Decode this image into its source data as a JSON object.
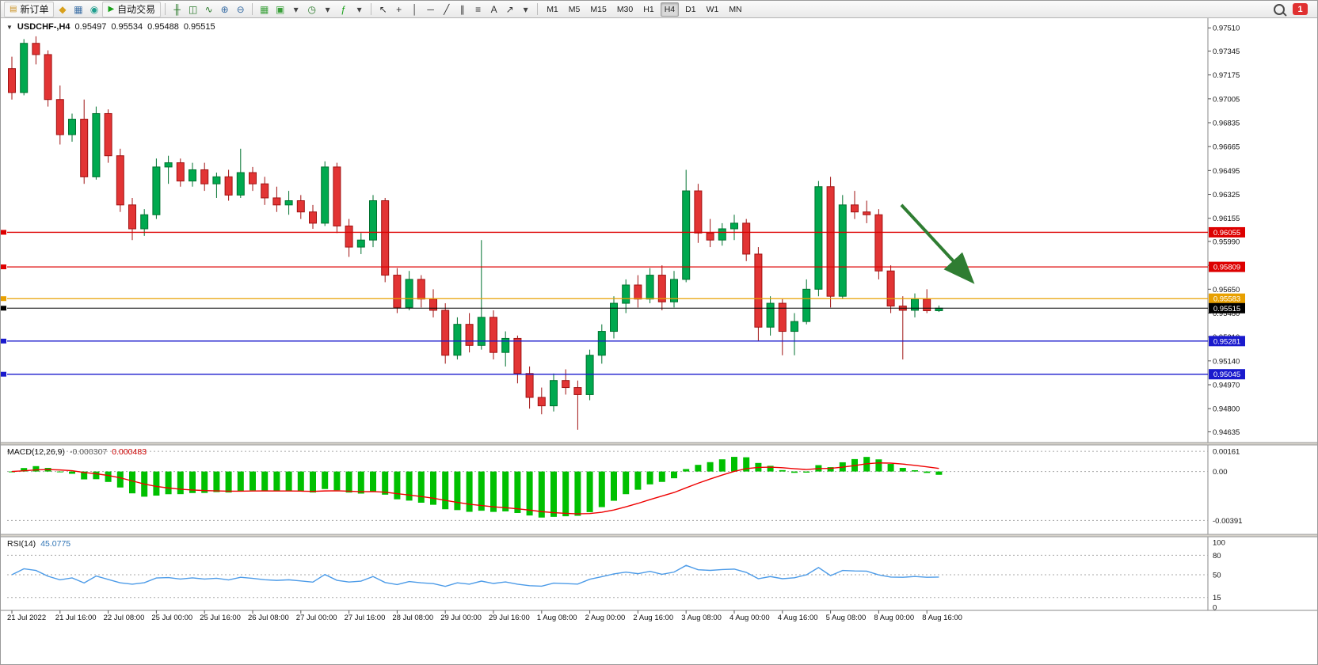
{
  "toolbar": {
    "left_items": [
      {
        "name": "new-order-button",
        "kind": "button",
        "label": "新订单",
        "glyph": "▤",
        "glyph_color": "#c98f1e"
      },
      {
        "name": "market-watch-icon",
        "kind": "icon",
        "glyph": "◆",
        "color": "#d8a01d"
      },
      {
        "name": "data-window-icon",
        "kind": "icon",
        "glyph": "▦",
        "color": "#3a6ea5"
      },
      {
        "name": "navigator-icon",
        "kind": "icon",
        "glyph": "◉",
        "color": "#1f9e8e"
      },
      {
        "name": "autotrading-button",
        "kind": "button",
        "label": "自动交易",
        "glyph": "▶",
        "glyph_color": "#18a018"
      },
      {
        "kind": "sep"
      },
      {
        "name": "bar-chart-icon",
        "kind": "icon",
        "glyph": "╫",
        "color": "#2a7a2a"
      },
      {
        "name": "candlestick-chart-icon",
        "kind": "icon",
        "glyph": "◫",
        "color": "#2a7a2a"
      },
      {
        "name": "line-chart-icon",
        "kind": "icon",
        "glyph": "∿",
        "color": "#2a7a2a"
      },
      {
        "name": "zoom-in-icon",
        "kind": "icon",
        "glyph": "⊕",
        "color": "#3a6ea5"
      },
      {
        "name": "zoom-out-icon",
        "kind": "icon",
        "glyph": "⊖",
        "color": "#3a6ea5"
      },
      {
        "kind": "sep"
      },
      {
        "name": "tile-windows-icon",
        "kind": "icon",
        "glyph": "▦",
        "color": "#3aa03a"
      },
      {
        "name": "new-chart-icon",
        "kind": "icon",
        "glyph": "▣",
        "color": "#3aa03a"
      },
      {
        "name": "chart-list-dropdown-icon",
        "kind": "icon",
        "glyph": "▾",
        "color": "#444444"
      },
      {
        "name": "period-clock-icon",
        "kind": "icon",
        "glyph": "◷",
        "color": "#2a7a2a"
      },
      {
        "name": "period-dropdown-icon",
        "kind": "icon",
        "glyph": "▾",
        "color": "#444444"
      },
      {
        "name": "indicators-icon",
        "kind": "icon",
        "glyph": "ƒ",
        "color": "#18a018"
      },
      {
        "name": "indicators-dropdown-icon",
        "kind": "icon",
        "glyph": "▾",
        "color": "#444444"
      },
      {
        "kind": "sep"
      },
      {
        "name": "cursor-icon",
        "kind": "icon",
        "glyph": "↖",
        "color": "#333333"
      },
      {
        "name": "crosshair-icon",
        "kind": "icon",
        "glyph": "+",
        "color": "#333333"
      },
      {
        "name": "vertical-line-icon",
        "kind": "icon",
        "glyph": "│",
        "color": "#333333"
      },
      {
        "name": "horizontal-line-icon",
        "kind": "icon",
        "glyph": "─",
        "color": "#333333"
      },
      {
        "name": "trendline-icon",
        "kind": "icon",
        "glyph": "╱",
        "color": "#333333"
      },
      {
        "name": "channel-icon",
        "kind": "icon",
        "glyph": "∥",
        "color": "#333333"
      },
      {
        "name": "fibonacci-icon",
        "kind": "icon",
        "glyph": "≡",
        "color": "#333333"
      },
      {
        "name": "text-icon",
        "kind": "icon",
        "glyph": "A",
        "color": "#333333"
      },
      {
        "name": "arrow-tools-icon",
        "kind": "icon",
        "glyph": "↗",
        "color": "#333333"
      },
      {
        "name": "shapes-dropdown-icon",
        "kind": "icon",
        "glyph": "▾",
        "color": "#444444"
      },
      {
        "kind": "sep"
      }
    ],
    "timeframes": [
      "M1",
      "M5",
      "M15",
      "M30",
      "H1",
      "H4",
      "D1",
      "W1",
      "MN"
    ],
    "active_timeframe": "H4",
    "notification_count": "1"
  },
  "chart": {
    "title": {
      "collapse_icon": "▼",
      "symbol": "USDCHF-,H4",
      "open": "0.95497",
      "high": "0.95534",
      "low": "0.95488",
      "close": "0.95515"
    },
    "price_axis_labels": [
      "0.97510",
      "0.97345",
      "0.97175",
      "0.97005",
      "0.96835",
      "0.96665",
      "0.96495",
      "0.96325",
      "0.96155",
      "0.95990",
      "0.95820",
      "0.95650",
      "0.95480",
      "0.95310",
      "0.95140",
      "0.94970",
      "0.94800",
      "0.94635"
    ],
    "levels": [
      {
        "name": "resistance-line-1",
        "price": 0.96055,
        "label": "0.96055",
        "color": "#dd0000"
      },
      {
        "name": "resistance-line-2",
        "price": 0.95809,
        "label": "0.95809",
        "color": "#dd0000"
      },
      {
        "name": "pivot-line",
        "price": 0.95583,
        "label": "0.95583",
        "color": "#e8a000"
      },
      {
        "name": "support-line-1",
        "price": 0.95281,
        "label": "0.95281",
        "color": "#1a1acd"
      },
      {
        "name": "support-line-2",
        "price": 0.95045,
        "label": "0.95045",
        "color": "#1a1acd"
      }
    ],
    "current_price": {
      "price": 0.95515,
      "label": "0.95515",
      "color": "#000000"
    },
    "annotation_arrow": {
      "color": "#2f7d32",
      "from_price": 0.9625,
      "to_price": 0.9572,
      "note": "down-trend arrow drawn in right margin"
    },
    "time_axis": {
      "labels": [
        "21 Jul 2022",
        "21 Jul 16:00",
        "22 Jul 08:00",
        "25 Jul 00:00",
        "25 Jul 16:00",
        "26 Jul 08:00",
        "27 Jul 00:00",
        "27 Jul 16:00",
        "28 Jul 08:00",
        "29 Jul 00:00",
        "29 Jul 16:00",
        "1 Aug 08:00",
        "2 Aug 00:00",
        "2 Aug 16:00",
        "3 Aug 08:00",
        "4 Aug 00:00",
        "4 Aug 16:00",
        "5 Aug 08:00",
        "8 Aug 00:00",
        "8 Aug 16:00"
      ],
      "indices": [
        0,
        4,
        8,
        12,
        16,
        20,
        24,
        28,
        32,
        36,
        40,
        44,
        48,
        52,
        56,
        60,
        64,
        68,
        72,
        76
      ]
    }
  },
  "macd": {
    "name": "MACD(12,26,9)",
    "main_value": "-0.000307",
    "signal_value": "0.000483",
    "axis_labels": [
      "0.00161",
      "0.00",
      "-0.00391"
    ],
    "axis_values": [
      0.00161,
      0,
      -0.00391
    ],
    "histogram_color": "#00c000",
    "signal_color": "#ee0000"
  },
  "rsi": {
    "name": "RSI(14)",
    "value": "45.0775",
    "axis_labels": [
      "100",
      "80",
      "50",
      "15",
      "0"
    ],
    "axis_values": [
      100,
      80,
      50,
      15,
      0
    ],
    "level_values": [
      80,
      50,
      15
    ],
    "line_color": "#4c9be8"
  },
  "chart_data": {
    "type": "candlestick",
    "symbol": "USDCHF",
    "period": "H4",
    "price_range": [
      0.94635,
      0.9751
    ],
    "up_color": "#00a94f",
    "down_color": "#e23434",
    "horizontal_levels": [
      0.96055,
      0.95809,
      0.95583,
      0.95281,
      0.95045
    ],
    "current_price": 0.95515,
    "indicators": {
      "macd": {
        "fast": 12,
        "slow": 26,
        "signal": 9,
        "last_main": -0.000307,
        "last_signal": 0.000483
      },
      "rsi": {
        "period": 14,
        "last": 45.0775
      }
    },
    "candles": [
      [
        0.9722,
        0.97305,
        0.97,
        0.9705
      ],
      [
        0.9705,
        0.9743,
        0.9703,
        0.974
      ],
      [
        0.974,
        0.9745,
        0.9725,
        0.9732
      ],
      [
        0.9732,
        0.9735,
        0.9695,
        0.97
      ],
      [
        0.97,
        0.971,
        0.9668,
        0.9675
      ],
      [
        0.9675,
        0.969,
        0.967,
        0.9686
      ],
      [
        0.9686,
        0.97,
        0.964,
        0.9645
      ],
      [
        0.9645,
        0.9695,
        0.9643,
        0.969
      ],
      [
        0.969,
        0.9693,
        0.9655,
        0.966
      ],
      [
        0.966,
        0.9665,
        0.962,
        0.9625
      ],
      [
        0.9625,
        0.963,
        0.96,
        0.9608
      ],
      [
        0.9608,
        0.9622,
        0.9603,
        0.9618
      ],
      [
        0.9618,
        0.9658,
        0.9615,
        0.9652
      ],
      [
        0.9652,
        0.966,
        0.964,
        0.9655
      ],
      [
        0.9655,
        0.9658,
        0.9638,
        0.9642
      ],
      [
        0.9642,
        0.9655,
        0.9638,
        0.965
      ],
      [
        0.965,
        0.9655,
        0.9635,
        0.964
      ],
      [
        0.964,
        0.9648,
        0.963,
        0.9645
      ],
      [
        0.9645,
        0.965,
        0.9628,
        0.9632
      ],
      [
        0.9632,
        0.9665,
        0.963,
        0.9648
      ],
      [
        0.9648,
        0.9652,
        0.9635,
        0.964
      ],
      [
        0.964,
        0.9645,
        0.9625,
        0.963
      ],
      [
        0.963,
        0.9638,
        0.962,
        0.9625
      ],
      [
        0.9625,
        0.9635,
        0.9618,
        0.9628
      ],
      [
        0.9628,
        0.9632,
        0.9615,
        0.962
      ],
      [
        0.962,
        0.9625,
        0.9608,
        0.9612
      ],
      [
        0.9612,
        0.9656,
        0.961,
        0.9652
      ],
      [
        0.9652,
        0.9655,
        0.9605,
        0.961
      ],
      [
        0.961,
        0.9615,
        0.9588,
        0.9595
      ],
      [
        0.9595,
        0.9605,
        0.959,
        0.96
      ],
      [
        0.96,
        0.9632,
        0.9595,
        0.9628
      ],
      [
        0.9628,
        0.963,
        0.957,
        0.9575
      ],
      [
        0.9575,
        0.958,
        0.9548,
        0.9552
      ],
      [
        0.9552,
        0.9578,
        0.955,
        0.9572
      ],
      [
        0.9572,
        0.9575,
        0.9552,
        0.9558
      ],
      [
        0.9558,
        0.9565,
        0.9545,
        0.955
      ],
      [
        0.955,
        0.9555,
        0.9512,
        0.9518
      ],
      [
        0.9518,
        0.9545,
        0.9515,
        0.954
      ],
      [
        0.954,
        0.9548,
        0.952,
        0.9525
      ],
      [
        0.9525,
        0.96,
        0.9522,
        0.9545
      ],
      [
        0.9545,
        0.955,
        0.9515,
        0.952
      ],
      [
        0.952,
        0.9535,
        0.951,
        0.953
      ],
      [
        0.953,
        0.9532,
        0.9498,
        0.9505
      ],
      [
        0.9505,
        0.951,
        0.948,
        0.9488
      ],
      [
        0.9488,
        0.9495,
        0.9476,
        0.9482
      ],
      [
        0.9482,
        0.9505,
        0.9478,
        0.95
      ],
      [
        0.95,
        0.9508,
        0.949,
        0.9495
      ],
      [
        0.9495,
        0.95,
        0.9465,
        0.949
      ],
      [
        0.949,
        0.9522,
        0.9486,
        0.9518
      ],
      [
        0.9518,
        0.954,
        0.9512,
        0.9535
      ],
      [
        0.9535,
        0.956,
        0.953,
        0.9555
      ],
      [
        0.9555,
        0.9572,
        0.9548,
        0.9568
      ],
      [
        0.9568,
        0.9575,
        0.9552,
        0.9558
      ],
      [
        0.9558,
        0.958,
        0.9555,
        0.9575
      ],
      [
        0.9575,
        0.9582,
        0.955,
        0.9556
      ],
      [
        0.9556,
        0.9578,
        0.9552,
        0.9572
      ],
      [
        0.9572,
        0.965,
        0.957,
        0.9635
      ],
      [
        0.9635,
        0.964,
        0.9598,
        0.9605
      ],
      [
        0.9605,
        0.9615,
        0.9595,
        0.96
      ],
      [
        0.96,
        0.9612,
        0.9596,
        0.9608
      ],
      [
        0.9608,
        0.9618,
        0.96,
        0.9612
      ],
      [
        0.9612,
        0.9615,
        0.9585,
        0.959
      ],
      [
        0.959,
        0.9595,
        0.9528,
        0.9538
      ],
      [
        0.9538,
        0.956,
        0.9532,
        0.9555
      ],
      [
        0.9555,
        0.9558,
        0.9518,
        0.9535
      ],
      [
        0.9535,
        0.9548,
        0.9518,
        0.9542
      ],
      [
        0.9542,
        0.9572,
        0.954,
        0.9565
      ],
      [
        0.9565,
        0.9642,
        0.956,
        0.9638
      ],
      [
        0.9638,
        0.9645,
        0.9552,
        0.956
      ],
      [
        0.956,
        0.9632,
        0.9558,
        0.9625
      ],
      [
        0.9625,
        0.9635,
        0.9615,
        0.962
      ],
      [
        0.962,
        0.9628,
        0.9612,
        0.9618
      ],
      [
        0.9618,
        0.9622,
        0.9572,
        0.9578
      ],
      [
        0.9578,
        0.9582,
        0.9548,
        0.9553
      ],
      [
        0.9553,
        0.956,
        0.9515,
        0.955
      ],
      [
        0.955,
        0.9562,
        0.9545,
        0.9558
      ],
      [
        0.9558,
        0.9565,
        0.9548,
        0.95497
      ],
      [
        0.95497,
        0.95534,
        0.95488,
        0.95515
      ]
    ]
  }
}
